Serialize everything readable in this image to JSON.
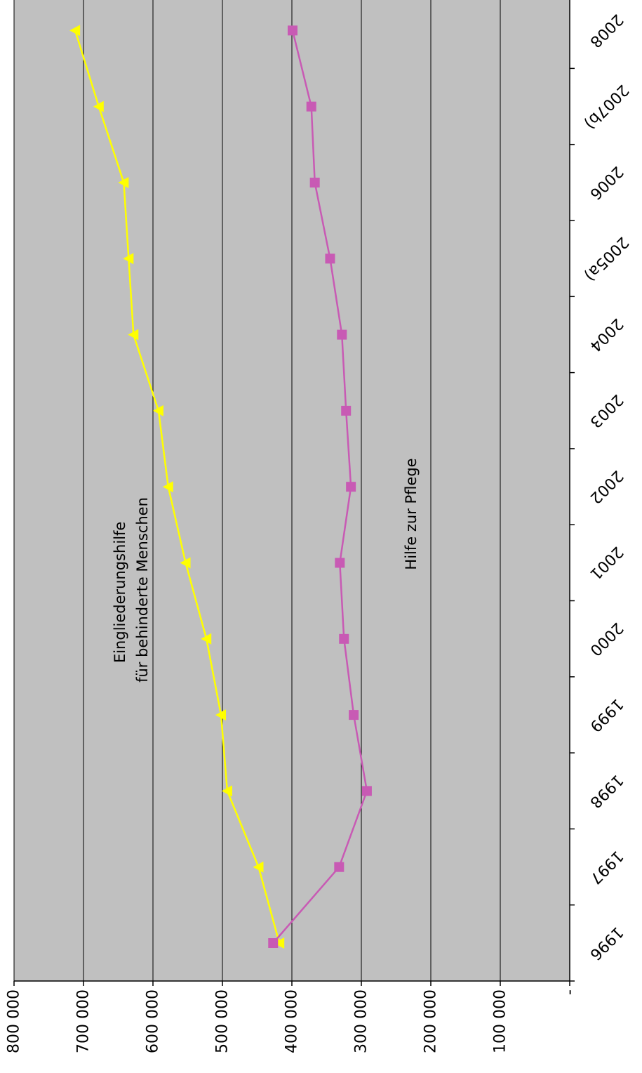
{
  "chart_data": {
    "type": "line",
    "orientation": "rotated-90-clockwise",
    "title": "",
    "xlabel": "",
    "ylabel": "",
    "categories": [
      "1996",
      "1997",
      "1998",
      "1999",
      "2000",
      "2001",
      "2002",
      "2003",
      "2004",
      "2005a)",
      "2006",
      "2007b)",
      "2008"
    ],
    "x_tick_labels": [
      "1996",
      "1997",
      "1998",
      "1999",
      "2000",
      "2001",
      "2002",
      "2003",
      "2004",
      "2005a)",
      "2006",
      "2007b)",
      "2008"
    ],
    "y_ticks": [
      0,
      100000,
      200000,
      300000,
      400000,
      500000,
      600000,
      700000,
      800000
    ],
    "y_tick_labels": [
      "-",
      "100 000",
      "200 000",
      "300 000",
      "400 000",
      "500 000",
      "600 000",
      "700 000",
      "800 000"
    ],
    "ylim": [
      0,
      800000
    ],
    "grid": true,
    "background": "#c0c0c0",
    "series": [
      {
        "label_lines": [
          "Eingliederungshilfe",
          "für behinderte Menschen"
        ],
        "color": "#ffff00",
        "marker": "triangle",
        "values": [
          418000,
          448000,
          493000,
          502000,
          523000,
          553000,
          578000,
          592000,
          628000,
          635000,
          642000,
          678000,
          712000
        ]
      },
      {
        "label_lines": [
          "Hilfe zur Pflege"
        ],
        "color": "#c85ab4",
        "marker": "square",
        "values": [
          427000,
          332000,
          292000,
          311000,
          325000,
          331000,
          315000,
          322000,
          328000,
          345000,
          367000,
          372000,
          399000
        ]
      }
    ]
  }
}
